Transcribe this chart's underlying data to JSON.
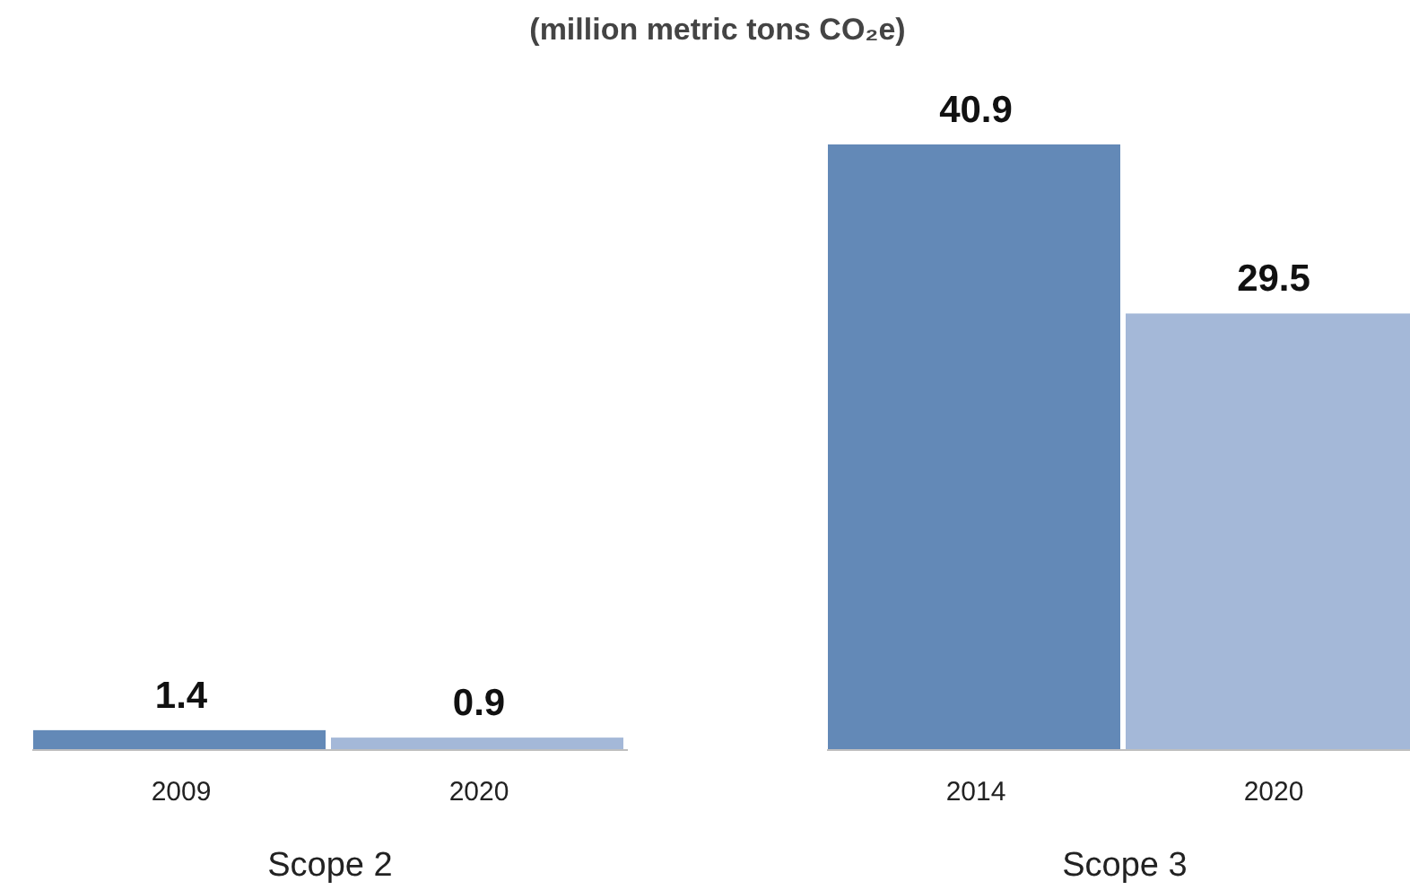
{
  "chart_data": {
    "type": "bar",
    "title": "(million metric tons CO₂e)",
    "categories": [
      "2009",
      "2020",
      "2014",
      "2020"
    ],
    "values": [
      1.4,
      0.9,
      40.9,
      29.5
    ],
    "colors": [
      "#6389b7",
      "#a4b8d8",
      "#6389b7",
      "#a4b8d8"
    ],
    "data_labels": true,
    "annotations": [
      "Scope 2",
      "Scope 3"
    ]
  }
}
